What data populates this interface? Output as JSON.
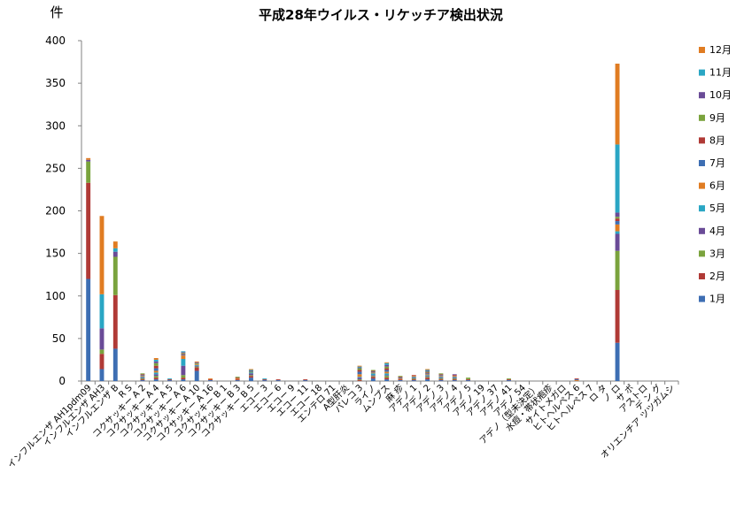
{
  "chart_data": {
    "type": "bar",
    "stacked": true,
    "title": "平成28年ウイルス・リケッチア検出状況",
    "ylabel": "件",
    "ylim": [
      0,
      400
    ],
    "yticks": [
      0,
      50,
      100,
      150,
      200,
      250,
      300,
      350,
      400
    ],
    "grid": false,
    "legend_position": "right",
    "categories": [
      "インフルエンザ AH1pdm09",
      "インフルエンザ AH3",
      "インフルエンザ B",
      "R S",
      "コクサッキー A 2",
      "コクサッキー A 4",
      "コクサッキー A 5",
      "コクサッキー A 6",
      "コクサッキー A 10",
      "コクサッキー A 16",
      "コクサッキー B 1",
      "コクサッキー B 3",
      "コクサッキー B 5",
      "エコー 3",
      "エコー 6",
      "エコー 9",
      "エコー 11",
      "エコー 18",
      "エンテロ 71",
      "A型肝炎",
      "パレコ 3",
      "ライノ",
      "ムンプス",
      "麻 疹",
      "アデノ 1",
      "アデノ 2",
      "アデノ 3",
      "アデノ 4",
      "アデノ 5",
      "アデノ 19",
      "アデノ 37",
      "アデノ 41",
      "アデノ 54",
      "アデノ（型未決定）",
      "水痘・帯状疱疹",
      "サイトメガロ",
      "ヒトヘルペス 6",
      "ヒトヘルペス 7",
      "ロ タ",
      "ノ ロ",
      "サ ポ",
      "アストロ",
      "デ ン グ",
      "オリエンチア ツツガムシ"
    ],
    "series": [
      {
        "name": "1月",
        "color": "#3d6eb3",
        "values": [
          120,
          14,
          38,
          0,
          1,
          2,
          1,
          2,
          12,
          1,
          0,
          1,
          4,
          1,
          1,
          0,
          1,
          0,
          0,
          0,
          0,
          3,
          2,
          1,
          1,
          2,
          1,
          1,
          1,
          0,
          0,
          1,
          0,
          0,
          0,
          0,
          0,
          0,
          0,
          45,
          0,
          0,
          0,
          0
        ]
      },
      {
        "name": "2月",
        "color": "#b03a36",
        "values": [
          113,
          18,
          63,
          0,
          1,
          2,
          1,
          2,
          4,
          1,
          0,
          1,
          2,
          1,
          1,
          0,
          1,
          0,
          0,
          0,
          1,
          2,
          2,
          1,
          1,
          2,
          1,
          1,
          1,
          0,
          0,
          1,
          0,
          0,
          0,
          0,
          0,
          0,
          0,
          62,
          0,
          0,
          0,
          0
        ]
      },
      {
        "name": "3月",
        "color": "#7aa33d",
        "values": [
          25,
          5,
          45,
          0,
          1,
          2,
          0,
          3,
          1,
          0,
          0,
          0,
          1,
          0,
          0,
          0,
          0,
          0,
          0,
          0,
          1,
          1,
          2,
          0,
          1,
          1,
          1,
          1,
          1,
          0,
          0,
          1,
          0,
          0,
          0,
          0,
          0,
          0,
          0,
          46,
          0,
          0,
          0,
          0
        ]
      },
      {
        "name": "4月",
        "color": "#6a4b97",
        "values": [
          2,
          25,
          6,
          0,
          1,
          2,
          0,
          11,
          1,
          0,
          0,
          0,
          2,
          0,
          0,
          0,
          0,
          0,
          0,
          0,
          2,
          1,
          1,
          0,
          1,
          1,
          1,
          1,
          0,
          0,
          0,
          0,
          0,
          0,
          0,
          0,
          0,
          0,
          0,
          20,
          0,
          0,
          0,
          0
        ]
      },
      {
        "name": "5月",
        "color": "#2aa6c4",
        "values": [
          0,
          40,
          4,
          0,
          1,
          2,
          1,
          8,
          1,
          0,
          0,
          0,
          1,
          1,
          0,
          0,
          0,
          0,
          0,
          0,
          1,
          2,
          2,
          0,
          1,
          1,
          1,
          1,
          0,
          0,
          0,
          0,
          0,
          0,
          0,
          0,
          0,
          0,
          0,
          3,
          0,
          0,
          0,
          0
        ]
      },
      {
        "name": "6月",
        "color": "#e07c22",
        "values": [
          0,
          0,
          0,
          0,
          1,
          2,
          0,
          4,
          1,
          0,
          0,
          1,
          0,
          0,
          0,
          0,
          0,
          0,
          0,
          0,
          3,
          1,
          2,
          1,
          1,
          1,
          1,
          1,
          0,
          0,
          0,
          0,
          0,
          0,
          0,
          0,
          1,
          0,
          0,
          8,
          0,
          0,
          0,
          0
        ]
      },
      {
        "name": "7月",
        "color": "#3d6eb3",
        "values": [
          0,
          0,
          0,
          0,
          1,
          3,
          0,
          1,
          0,
          0,
          0,
          0,
          0,
          0,
          0,
          0,
          0,
          0,
          0,
          0,
          3,
          1,
          2,
          1,
          0,
          1,
          1,
          0,
          0,
          0,
          0,
          0,
          0,
          0,
          0,
          0,
          1,
          0,
          0,
          4,
          0,
          0,
          0,
          0
        ]
      },
      {
        "name": "8月",
        "color": "#b03a36",
        "values": [
          0,
          0,
          0,
          0,
          1,
          3,
          0,
          1,
          0,
          0,
          0,
          1,
          0,
          0,
          0,
          0,
          0,
          0,
          0,
          0,
          2,
          1,
          2,
          1,
          1,
          1,
          1,
          1,
          0,
          0,
          0,
          0,
          0,
          0,
          0,
          0,
          1,
          0,
          0,
          3,
          0,
          0,
          0,
          0
        ]
      },
      {
        "name": "9月",
        "color": "#7aa33d",
        "values": [
          0,
          0,
          0,
          0,
          1,
          3,
          0,
          1,
          1,
          0,
          0,
          1,
          1,
          0,
          0,
          0,
          0,
          0,
          0,
          0,
          2,
          1,
          2,
          1,
          0,
          1,
          1,
          0,
          1,
          0,
          0,
          0,
          0,
          0,
          0,
          0,
          0,
          0,
          0,
          2,
          0,
          0,
          0,
          0
        ]
      },
      {
        "name": "10月",
        "color": "#6a4b97",
        "values": [
          0,
          0,
          0,
          0,
          0,
          2,
          0,
          1,
          1,
          0,
          0,
          0,
          1,
          0,
          0,
          0,
          0,
          0,
          0,
          0,
          1,
          0,
          2,
          0,
          0,
          1,
          0,
          1,
          0,
          0,
          0,
          0,
          0,
          0,
          0,
          0,
          0,
          0,
          0,
          5,
          0,
          0,
          0,
          0
        ]
      },
      {
        "name": "11月",
        "color": "#2aa6c4",
        "values": [
          0,
          0,
          0,
          0,
          0,
          2,
          0,
          1,
          0,
          0,
          0,
          0,
          1,
          0,
          0,
          0,
          0,
          0,
          0,
          0,
          1,
          0,
          2,
          0,
          0,
          1,
          0,
          0,
          0,
          0,
          0,
          0,
          0,
          0,
          0,
          0,
          0,
          0,
          0,
          80,
          0,
          0,
          0,
          0
        ]
      },
      {
        "name": "12月",
        "color": "#e07c22",
        "values": [
          2,
          92,
          8,
          0,
          0,
          2,
          0,
          0,
          1,
          1,
          0,
          0,
          1,
          0,
          0,
          0,
          0,
          0,
          0,
          0,
          1,
          0,
          1,
          0,
          0,
          1,
          0,
          0,
          0,
          0,
          0,
          0,
          0,
          0,
          0,
          0,
          0,
          0,
          0,
          95,
          0,
          0,
          0,
          0
        ]
      }
    ]
  }
}
